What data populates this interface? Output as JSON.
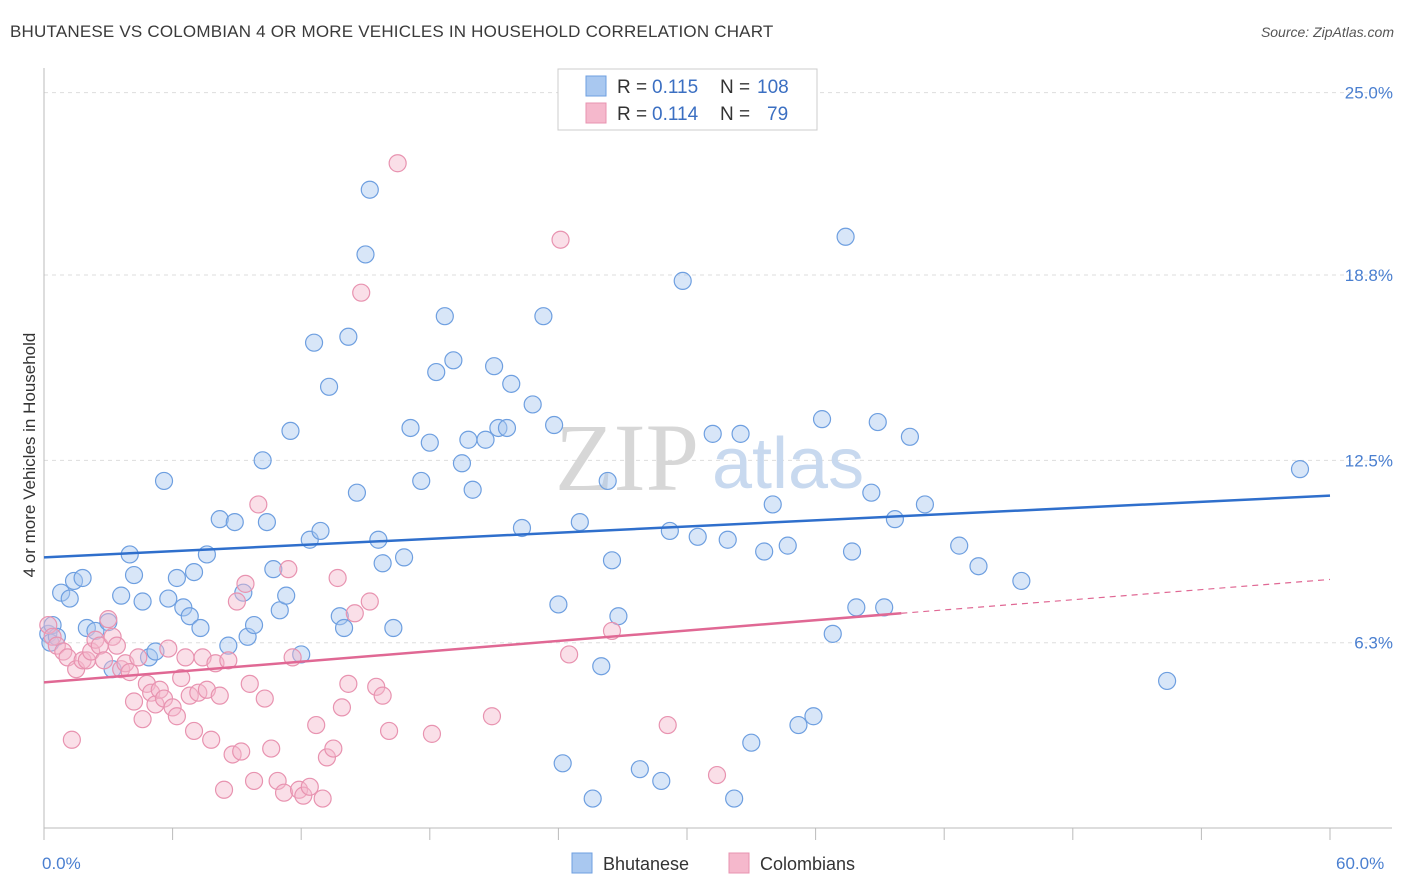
{
  "title": "BHUTANESE VS COLOMBIAN 4 OR MORE VEHICLES IN HOUSEHOLD CORRELATION CHART",
  "source": "Source: ZipAtlas.com",
  "watermark": {
    "zip": "ZIP",
    "atlas": "atlas"
  },
  "colors": {
    "blue_fill": "#a9c8f0",
    "blue_stroke": "#6e9fe0",
    "blue_line": "#2f6fcc",
    "pink_fill": "#f5b8cc",
    "pink_stroke": "#e893b0",
    "pink_line": "#e06894",
    "tick_text": "#4a7fd0",
    "grid": "#dddddd"
  },
  "legend": {
    "rows": [
      {
        "r_label": "R =",
        "r_value": "0.115",
        "n_label": "N =",
        "n_value": "108"
      },
      {
        "r_label": "R =",
        "r_value": "0.114",
        "n_label": "N =",
        "n_value": "79"
      }
    ]
  },
  "bottom_legend": [
    "Bhutanese",
    "Colombians"
  ],
  "chart_data": {
    "type": "scatter",
    "xlabel": "",
    "ylabel": "4 or more Vehicles in Household",
    "xlim": [
      0,
      60
    ],
    "ylim": [
      0,
      25.6
    ],
    "x_tick_labels": [
      "0.0%",
      "60.0%"
    ],
    "y_ticks": [
      6.3,
      12.5,
      18.8,
      25.0
    ],
    "y_tick_labels": [
      "6.3%",
      "12.5%",
      "18.8%",
      "25.0%"
    ],
    "grid": true,
    "legend_position": "top-center",
    "series": [
      {
        "name": "Bhutanese",
        "trend": {
          "x0": 0,
          "y0": 9.2,
          "x1": 60,
          "y1": 11.3
        },
        "points": [
          [
            0.2,
            6.6
          ],
          [
            0.3,
            6.3
          ],
          [
            0.4,
            6.9
          ],
          [
            0.6,
            6.5
          ],
          [
            0.8,
            8.0
          ],
          [
            1.2,
            7.8
          ],
          [
            1.4,
            8.4
          ],
          [
            1.8,
            8.5
          ],
          [
            2.0,
            6.8
          ],
          [
            2.4,
            6.7
          ],
          [
            3.0,
            7.0
          ],
          [
            3.2,
            5.4
          ],
          [
            3.6,
            7.9
          ],
          [
            4.0,
            9.3
          ],
          [
            4.2,
            8.6
          ],
          [
            4.6,
            7.7
          ],
          [
            4.9,
            5.8
          ],
          [
            5.2,
            6.0
          ],
          [
            5.6,
            11.8
          ],
          [
            5.8,
            7.8
          ],
          [
            6.2,
            8.5
          ],
          [
            6.5,
            7.5
          ],
          [
            6.8,
            7.2
          ],
          [
            7.0,
            8.7
          ],
          [
            7.3,
            6.8
          ],
          [
            7.6,
            9.3
          ],
          [
            8.2,
            10.5
          ],
          [
            8.6,
            6.2
          ],
          [
            8.9,
            10.4
          ],
          [
            9.3,
            8.0
          ],
          [
            9.5,
            6.5
          ],
          [
            9.8,
            6.9
          ],
          [
            10.2,
            12.5
          ],
          [
            10.4,
            10.4
          ],
          [
            10.7,
            8.8
          ],
          [
            11.0,
            7.4
          ],
          [
            11.3,
            7.9
          ],
          [
            11.5,
            13.5
          ],
          [
            12.0,
            5.9
          ],
          [
            12.4,
            9.8
          ],
          [
            12.6,
            16.5
          ],
          [
            12.9,
            10.1
          ],
          [
            13.3,
            15.0
          ],
          [
            13.8,
            7.2
          ],
          [
            14.0,
            6.8
          ],
          [
            14.2,
            16.7
          ],
          [
            14.6,
            11.4
          ],
          [
            15.0,
            19.5
          ],
          [
            15.2,
            21.7
          ],
          [
            15.6,
            9.8
          ],
          [
            15.8,
            9.0
          ],
          [
            16.3,
            6.8
          ],
          [
            16.8,
            9.2
          ],
          [
            17.1,
            13.6
          ],
          [
            17.6,
            11.8
          ],
          [
            18.0,
            13.1
          ],
          [
            18.3,
            15.5
          ],
          [
            18.7,
            17.4
          ],
          [
            19.1,
            15.9
          ],
          [
            19.5,
            12.4
          ],
          [
            19.8,
            13.2
          ],
          [
            20.0,
            11.5
          ],
          [
            20.6,
            13.2
          ],
          [
            21.0,
            15.7
          ],
          [
            21.2,
            13.6
          ],
          [
            21.6,
            13.6
          ],
          [
            21.8,
            15.1
          ],
          [
            22.3,
            10.2
          ],
          [
            22.8,
            14.4
          ],
          [
            23.3,
            17.4
          ],
          [
            23.8,
            13.7
          ],
          [
            24.0,
            7.6
          ],
          [
            24.2,
            2.2
          ],
          [
            25.0,
            10.4
          ],
          [
            25.6,
            1.0
          ],
          [
            26.0,
            5.5
          ],
          [
            26.3,
            11.8
          ],
          [
            26.5,
            9.1
          ],
          [
            26.8,
            7.2
          ],
          [
            27.8,
            2.0
          ],
          [
            28.8,
            1.6
          ],
          [
            29.2,
            10.1
          ],
          [
            29.8,
            18.6
          ],
          [
            30.5,
            9.9
          ],
          [
            31.2,
            13.4
          ],
          [
            31.9,
            9.8
          ],
          [
            32.2,
            1.0
          ],
          [
            32.5,
            13.4
          ],
          [
            33.0,
            2.9
          ],
          [
            33.6,
            9.4
          ],
          [
            34.0,
            11.0
          ],
          [
            34.7,
            9.6
          ],
          [
            35.2,
            3.5
          ],
          [
            35.9,
            3.8
          ],
          [
            36.3,
            13.9
          ],
          [
            36.8,
            6.6
          ],
          [
            37.4,
            20.1
          ],
          [
            37.7,
            9.4
          ],
          [
            37.9,
            7.5
          ],
          [
            38.6,
            11.4
          ],
          [
            38.9,
            13.8
          ],
          [
            39.2,
            7.5
          ],
          [
            39.7,
            10.5
          ],
          [
            40.4,
            13.3
          ],
          [
            41.1,
            11.0
          ],
          [
            42.7,
            9.6
          ],
          [
            43.6,
            8.9
          ],
          [
            45.6,
            8.4
          ],
          [
            52.4,
            5.0
          ],
          [
            58.6,
            12.2
          ]
        ]
      },
      {
        "name": "Colombians",
        "trend": {
          "x0": 0,
          "y0": 4.95,
          "x1": 40,
          "y1": 7.3,
          "dash_x1": 60,
          "dash_y1": 8.45
        },
        "points": [
          [
            0.2,
            6.9
          ],
          [
            0.4,
            6.5
          ],
          [
            0.6,
            6.2
          ],
          [
            0.9,
            6.0
          ],
          [
            1.1,
            5.8
          ],
          [
            1.3,
            3.0
          ],
          [
            1.5,
            5.4
          ],
          [
            1.8,
            5.7
          ],
          [
            2.0,
            5.7
          ],
          [
            2.2,
            6.0
          ],
          [
            2.4,
            6.4
          ],
          [
            2.6,
            6.2
          ],
          [
            2.8,
            5.7
          ],
          [
            3.0,
            7.1
          ],
          [
            3.2,
            6.5
          ],
          [
            3.4,
            6.2
          ],
          [
            3.6,
            5.4
          ],
          [
            3.8,
            5.6
          ],
          [
            4.0,
            5.3
          ],
          [
            4.2,
            4.3
          ],
          [
            4.4,
            5.8
          ],
          [
            4.6,
            3.7
          ],
          [
            4.8,
            4.9
          ],
          [
            5.0,
            4.6
          ],
          [
            5.2,
            4.2
          ],
          [
            5.4,
            4.7
          ],
          [
            5.6,
            4.4
          ],
          [
            5.8,
            6.1
          ],
          [
            6.0,
            4.1
          ],
          [
            6.2,
            3.8
          ],
          [
            6.4,
            5.1
          ],
          [
            6.6,
            5.8
          ],
          [
            6.8,
            4.5
          ],
          [
            7.0,
            3.3
          ],
          [
            7.2,
            4.6
          ],
          [
            7.4,
            5.8
          ],
          [
            7.6,
            4.7
          ],
          [
            7.8,
            3.0
          ],
          [
            8.0,
            5.6
          ],
          [
            8.2,
            4.5
          ],
          [
            8.4,
            1.3
          ],
          [
            8.6,
            5.7
          ],
          [
            8.8,
            2.5
          ],
          [
            9.0,
            7.7
          ],
          [
            9.2,
            2.6
          ],
          [
            9.4,
            8.3
          ],
          [
            9.6,
            4.9
          ],
          [
            9.8,
            1.6
          ],
          [
            10.0,
            11.0
          ],
          [
            10.3,
            4.4
          ],
          [
            10.6,
            2.7
          ],
          [
            10.9,
            1.6
          ],
          [
            11.2,
            1.2
          ],
          [
            11.4,
            8.8
          ],
          [
            11.6,
            5.8
          ],
          [
            11.9,
            1.3
          ],
          [
            12.1,
            1.1
          ],
          [
            12.4,
            1.4
          ],
          [
            12.7,
            3.5
          ],
          [
            13.0,
            1.0
          ],
          [
            13.2,
            2.4
          ],
          [
            13.5,
            2.7
          ],
          [
            13.7,
            8.5
          ],
          [
            13.9,
            4.1
          ],
          [
            14.2,
            4.9
          ],
          [
            14.5,
            7.3
          ],
          [
            14.8,
            18.2
          ],
          [
            15.2,
            7.7
          ],
          [
            15.5,
            4.8
          ],
          [
            15.8,
            4.5
          ],
          [
            16.1,
            3.3
          ],
          [
            16.5,
            22.6
          ],
          [
            18.1,
            3.2
          ],
          [
            20.9,
            3.8
          ],
          [
            24.1,
            20.0
          ],
          [
            24.5,
            5.9
          ],
          [
            26.5,
            6.7
          ],
          [
            29.1,
            3.5
          ],
          [
            31.4,
            1.8
          ]
        ]
      }
    ]
  }
}
